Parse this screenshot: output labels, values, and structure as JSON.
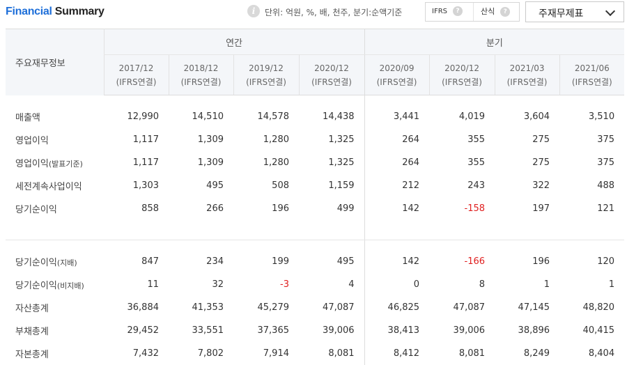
{
  "header": {
    "title_part1": "Financial",
    "title_part2": " Summary",
    "info_icon": "info-icon",
    "unit_text": "단위: 억원, %, 배, 천주, 분기:순액기준",
    "segment": {
      "ifrs_label": "IFRS",
      "calc_label": "산식",
      "help_glyph": "?"
    },
    "dropdown": {
      "selected": "주재무제표"
    }
  },
  "table": {
    "row_header": "주요재무정보",
    "groups": {
      "annual": "연간",
      "quarterly": "분기"
    },
    "columns": [
      {
        "period": "2017/12",
        "basis": "(IFRS연결)"
      },
      {
        "period": "2018/12",
        "basis": "(IFRS연결)"
      },
      {
        "period": "2019/12",
        "basis": "(IFRS연결)"
      },
      {
        "period": "2020/12",
        "basis": "(IFRS연결)"
      },
      {
        "period": "2020/09",
        "basis": "(IFRS연결)"
      },
      {
        "period": "2020/12",
        "basis": "(IFRS연결)"
      },
      {
        "period": "2021/03",
        "basis": "(IFRS연결)"
      },
      {
        "period": "2021/06",
        "basis": "(IFRS연결)"
      }
    ],
    "rows": [
      {
        "label": "매출액",
        "values": [
          "12,990",
          "14,510",
          "14,578",
          "14,438",
          "3,441",
          "4,019",
          "3,604",
          "3,510"
        ]
      },
      {
        "label": "영업이익",
        "values": [
          "1,117",
          "1,309",
          "1,280",
          "1,325",
          "264",
          "355",
          "275",
          "375"
        ]
      },
      {
        "label": "영업이익",
        "label_suffix": "(발표기준)",
        "values": [
          "1,117",
          "1,309",
          "1,280",
          "1,325",
          "264",
          "355",
          "275",
          "375"
        ]
      },
      {
        "label": "세전계속사업이익",
        "values": [
          "1,303",
          "495",
          "508",
          "1,159",
          "212",
          "243",
          "322",
          "488"
        ]
      },
      {
        "label": "당기순이익",
        "values": [
          "858",
          "266",
          "196",
          "499",
          "142",
          "-158",
          "197",
          "121"
        ]
      },
      {
        "label": "당기순이익",
        "label_suffix": "(지배)",
        "values": [
          "847",
          "234",
          "199",
          "495",
          "142",
          "-166",
          "196",
          "120"
        ]
      },
      {
        "label": "당기순이익",
        "label_suffix": "(비지배)",
        "values": [
          "11",
          "32",
          "-3",
          "4",
          "0",
          "8",
          "1",
          "1"
        ]
      },
      {
        "label": "자산총계",
        "values": [
          "36,884",
          "41,353",
          "45,279",
          "47,087",
          "46,825",
          "47,087",
          "47,145",
          "48,820"
        ]
      },
      {
        "label": "부채총계",
        "values": [
          "29,452",
          "33,551",
          "37,365",
          "39,006",
          "38,413",
          "39,006",
          "38,896",
          "40,415"
        ]
      },
      {
        "label": "자본총계",
        "values": [
          "7,432",
          "7,802",
          "7,914",
          "8,081",
          "8,412",
          "8,081",
          "8,249",
          "8,404"
        ]
      }
    ]
  },
  "colors": {
    "accent": "#1e6fd9",
    "negative": "#e02020",
    "header_bg": "#f4f6f9"
  }
}
